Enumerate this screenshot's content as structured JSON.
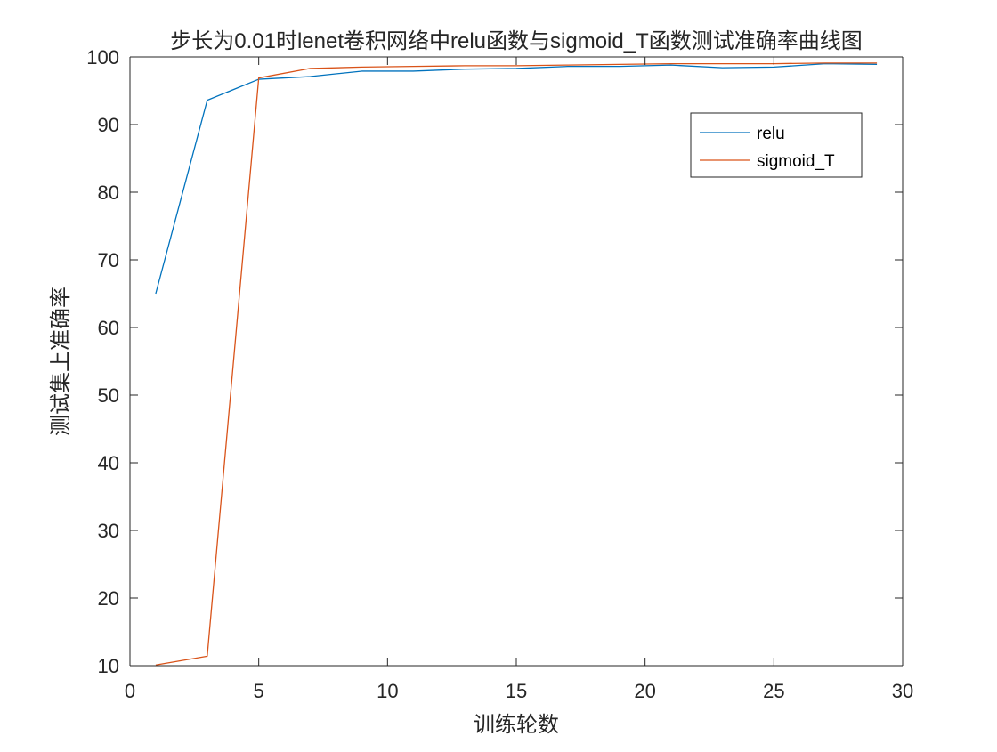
{
  "chart_data": {
    "type": "line",
    "title": "步长为0.01时lenet卷积网络中relu函数与sigmoid_T函数测试准确率曲线图",
    "xlabel": "训练轮数",
    "ylabel": "测试集上准确率",
    "xlim": [
      0,
      30
    ],
    "ylim": [
      10,
      100
    ],
    "xticks": [
      0,
      5,
      10,
      15,
      20,
      25,
      30
    ],
    "yticks": [
      10,
      20,
      30,
      40,
      50,
      60,
      70,
      80,
      90,
      100
    ],
    "grid": false,
    "legend_position": "top-right",
    "series": [
      {
        "name": "relu",
        "color": "#0072BD",
        "x": [
          1,
          3,
          5,
          7,
          9,
          11,
          13,
          15,
          17,
          19,
          21,
          23,
          25,
          27,
          29
        ],
        "y": [
          65,
          93.6,
          96.7,
          97.1,
          97.9,
          97.9,
          98.2,
          98.3,
          98.6,
          98.6,
          98.8,
          98.4,
          98.5,
          99.0,
          98.9
        ]
      },
      {
        "name": "sigmoid_T",
        "color": "#D95319",
        "x": [
          1,
          3,
          5,
          7,
          9,
          11,
          13,
          15,
          17,
          19,
          21,
          23,
          25,
          27,
          29
        ],
        "y": [
          10.1,
          11.4,
          96.9,
          98.3,
          98.5,
          98.6,
          98.7,
          98.7,
          98.8,
          98.9,
          99.0,
          99.0,
          99.0,
          99.1,
          99.1
        ]
      }
    ]
  }
}
